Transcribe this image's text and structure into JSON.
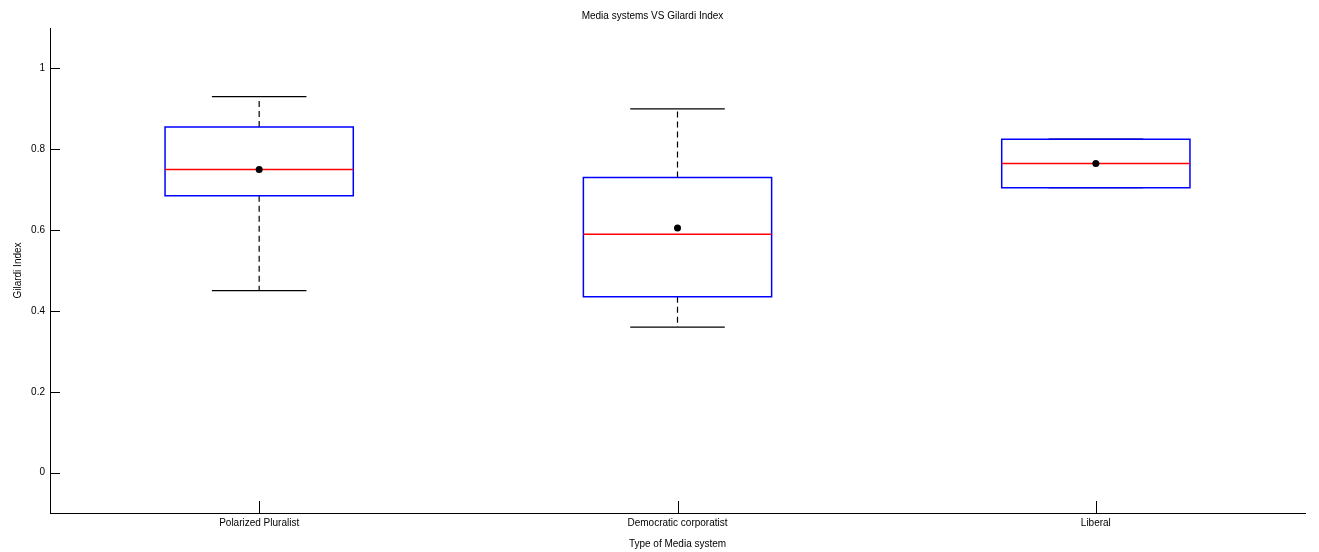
{
  "chart_data": {
    "type": "box",
    "title": "Media systems VS Gilardi Index",
    "xlabel": "Type of Media system",
    "ylabel": "Gilardi Index",
    "categories": [
      "Polarized Pluralist",
      "Democratic corporatist",
      "Liberal"
    ],
    "boxes": [
      {
        "low": 0.45,
        "q1": 0.685,
        "median": 0.75,
        "q3": 0.855,
        "high": 0.93,
        "mean": 0.75
      },
      {
        "low": 0.36,
        "q1": 0.435,
        "median": 0.59,
        "q3": 0.73,
        "high": 0.9,
        "mean": 0.605
      },
      {
        "low": 0.705,
        "q1": 0.705,
        "median": 0.765,
        "q3": 0.825,
        "high": 0.825,
        "mean": 0.765
      }
    ],
    "color": "#0000ff",
    "ylim": [
      -0.1,
      1.1
    ],
    "yticks": [
      0,
      0.2,
      0.4,
      0.6,
      0.8,
      1
    ]
  }
}
